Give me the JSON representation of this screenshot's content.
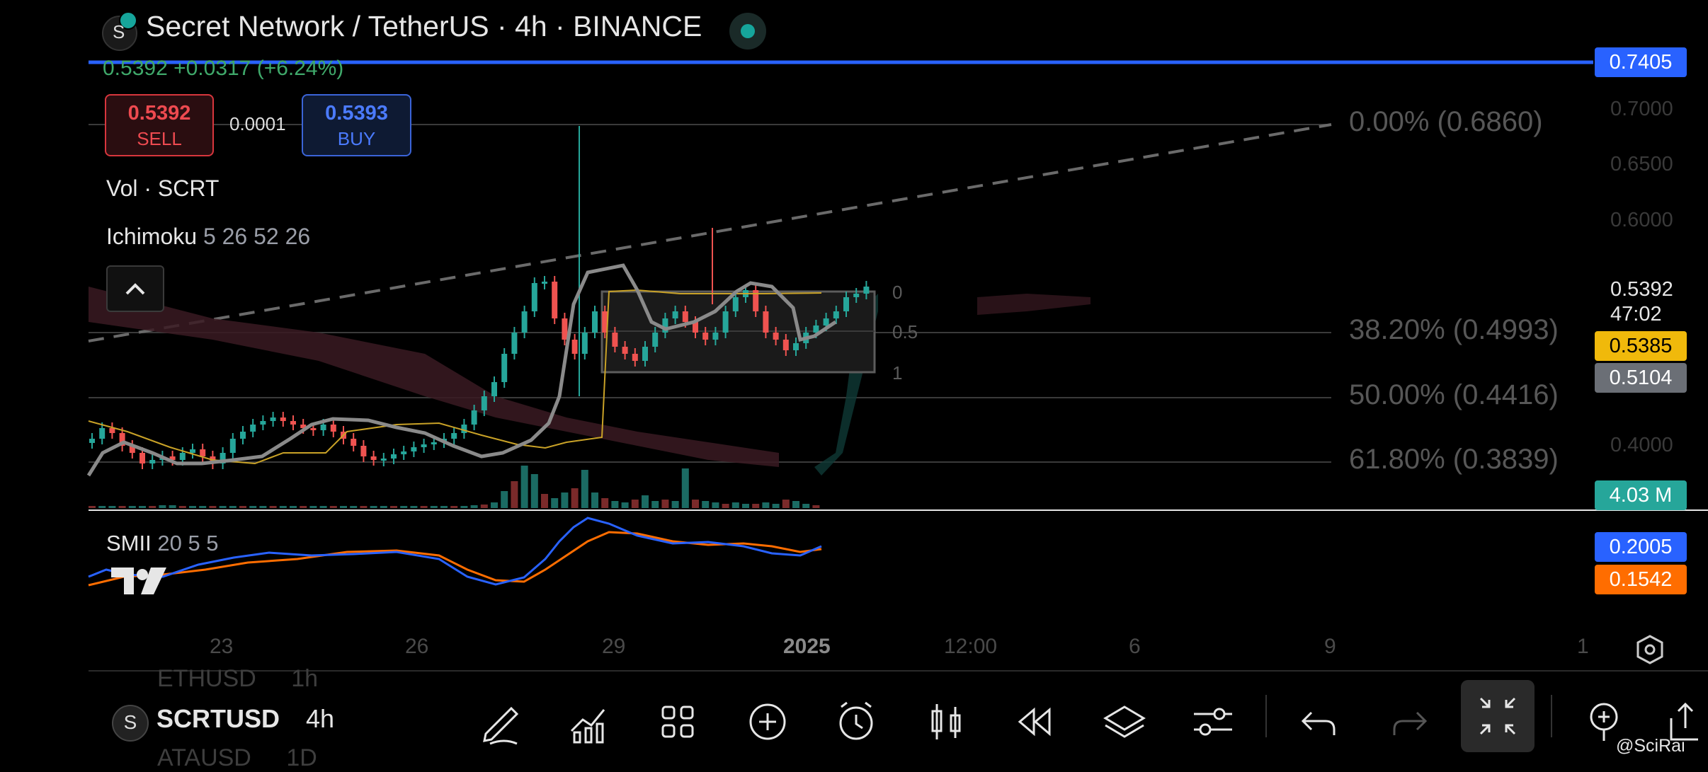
{
  "header": {
    "title": "Secret Network / TetherUS · 4h · BINANCE",
    "symbol_icon": "S",
    "change_line": "0.5392  +0.0317 (+6.24%)"
  },
  "trade": {
    "sell_price": "0.5392",
    "sell_label": "SELL",
    "spread": "0.0001",
    "buy_price": "0.5393",
    "buy_label": "BUY"
  },
  "indicators": {
    "volume": "Vol · SCRT",
    "ichimoku_name": "Ichimoku",
    "ichimoku_params": "5 26 52 26",
    "smii_name": "SMII",
    "smii_params": "20 5 5"
  },
  "price_axis": {
    "labels": [
      "0.7000",
      "0.6500",
      "0.6000",
      "0.4000"
    ],
    "alert_level": "0.7405",
    "last_price": "0.5392",
    "countdown": "47:02",
    "tag_yellow": "0.5385",
    "tag_gray": "0.5104",
    "volume_tag": "4.03 M",
    "smii_blue": "0.2005",
    "smii_orange": "0.1542"
  },
  "fibonacci": [
    {
      "label": "0.00% (0.6860)"
    },
    {
      "label": "38.20% (0.4993)"
    },
    {
      "label": "50.00% (0.4416)"
    },
    {
      "label": "61.80% (0.3839)"
    }
  ],
  "range_box": {
    "levels": [
      "0",
      "0.5",
      "1"
    ]
  },
  "time_axis": [
    "23",
    "26",
    "29",
    "2025",
    "12:00",
    "6",
    "9",
    "1"
  ],
  "watchlist": {
    "ghost_above": "ETHUSD",
    "ghost_above_tf": "1h",
    "symbol": "SCRTUSD",
    "timeframe": "4h",
    "ghost_below": "ATAUSD",
    "ghost_below_tf": "1D"
  },
  "toolbar": [
    "pencil-icon",
    "chart-add-icon",
    "grid-icon",
    "plus-circle-icon",
    "alarm-icon",
    "candles-icon",
    "replay-icon",
    "layers-icon",
    "sliders-icon",
    "undo-icon",
    "redo-icon",
    "fullscreen-exit-icon",
    "pin-icon",
    "share-icon"
  ],
  "credit": "@SciRai",
  "colors": {
    "up": "#26a69a",
    "down": "#ef5350",
    "accent": "#2962ff",
    "smii_blue": "#2962ff",
    "smii_orange": "#ff6d00"
  }
}
